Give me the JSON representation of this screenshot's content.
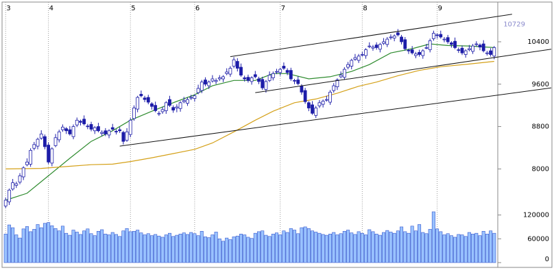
{
  "chart_data": {
    "type": "candlestick",
    "xlim": [
      -1,
      138
    ],
    "x_ticks": [
      {
        "value": 0,
        "label": "3"
      },
      {
        "value": 12,
        "label": "4"
      },
      {
        "value": 35,
        "label": "5"
      },
      {
        "value": 53,
        "label": "6"
      },
      {
        "value": 77,
        "label": "7"
      },
      {
        "value": 100,
        "label": "8"
      },
      {
        "value": 121,
        "label": "9"
      }
    ],
    "ylim": [
      7280,
      11150
    ],
    "yticks": [
      8000,
      8800,
      9600,
      10400
    ],
    "price_label": 10729,
    "up_color": "#ffffff",
    "down_color": "#1c1ca8",
    "open": [
      7300,
      7380,
      7620,
      7690,
      7750,
      7850,
      8080,
      8090,
      8390,
      8430,
      8580,
      8610,
      8450,
      8110,
      8440,
      8550,
      8740,
      8760,
      8740,
      8610,
      8830,
      8900,
      8940,
      8810,
      8840,
      8720,
      8800,
      8670,
      8720,
      8640,
      8780,
      8710,
      8740,
      8690,
      8540,
      8650,
      8950,
      9130,
      9410,
      9340,
      9350,
      9230,
      9200,
      9050,
      9080,
      9100,
      9310,
      9160,
      9150,
      9140,
      9270,
      9240,
      9340,
      9330,
      9440,
      9480,
      9680,
      9570,
      9660,
      9650,
      9700,
      9700,
      9800,
      9790,
      9940,
      10030,
      9920,
      9720,
      9730,
      9650,
      9780,
      9700,
      9690,
      9500,
      9670,
      9720,
      9830,
      9820,
      9940,
      9860,
      9860,
      9670,
      9680,
      9560,
      9480,
      9250,
      9210,
      9010,
      9190,
      9220,
      9300,
      9260,
      9480,
      9550,
      9740,
      9730,
      9920,
      9940,
      10070,
      10050,
      10160,
      10140,
      10310,
      10280,
      10340,
      10260,
      10370,
      10350,
      10480,
      10470,
      10570,
      10490,
      10440,
      10240,
      10250,
      10140,
      10200,
      10140,
      10290,
      10250,
      10460,
      10530,
      10540,
      10440,
      10480,
      10380,
      10410,
      10250,
      10280,
      10160,
      10250,
      10220,
      10350,
      10340,
      10360,
      10190,
      10230,
      10130
    ],
    "high": [
      7460,
      7630,
      7810,
      7760,
      7920,
      8050,
      8200,
      8390,
      8510,
      8590,
      8730,
      8650,
      8500,
      8410,
      8660,
      8740,
      8840,
      8790,
      8810,
      8840,
      8970,
      8930,
      9010,
      8850,
      8890,
      8810,
      8870,
      8730,
      8770,
      8750,
      8850,
      8750,
      8790,
      8720,
      8770,
      8960,
      9200,
      9380,
      9480,
      9380,
      9400,
      9260,
      9270,
      9090,
      9170,
      9280,
      9380,
      9200,
      9220,
      9280,
      9360,
      9350,
      9400,
      9410,
      9590,
      9680,
      9730,
      9670,
      9770,
      9710,
      9770,
      9770,
      9900,
      9940,
      10110,
      10090,
      9990,
      9760,
      9780,
      9750,
      9850,
      9740,
      9740,
      9680,
      9840,
      9840,
      9890,
      9910,
      10010,
      9900,
      9910,
      9700,
      9750,
      9600,
      9530,
      9280,
      9280,
      9190,
      9300,
      9310,
      9380,
      9490,
      9620,
      9710,
      9840,
      9920,
      10020,
      10080,
      10170,
      10170,
      10210,
      10280,
      10390,
      10340,
      10390,
      10380,
      10470,
      10490,
      10540,
      10540,
      10640,
      10530,
      10490,
      10270,
      10320,
      10210,
      10250,
      10260,
      10360,
      10460,
      10610,
      10560,
      10610,
      10490,
      10530,
      10410,
      10480,
      10290,
      10330,
      10260,
      10340,
      10360,
      10410,
      10370,
      10430,
      10230,
      10280,
      10320
    ],
    "low": [
      7260,
      7320,
      7590,
      7640,
      7710,
      7790,
      8050,
      8040,
      8350,
      8370,
      8550,
      8370,
      8090,
      8050,
      8410,
      8500,
      8700,
      8660,
      8630,
      8560,
      8790,
      8820,
      8820,
      8750,
      8710,
      8660,
      8690,
      8620,
      8620,
      8580,
      8720,
      8650,
      8680,
      8460,
      8510,
      8600,
      8910,
      9070,
      9350,
      9260,
      9220,
      9120,
      9070,
      9000,
      9040,
      9040,
      9170,
      9060,
      9070,
      9080,
      9240,
      9190,
      9300,
      9270,
      9410,
      9430,
      9560,
      9510,
      9630,
      9600,
      9660,
      9640,
      9770,
      9740,
      9900,
      9840,
      9740,
      9650,
      9630,
      9590,
      9710,
      9600,
      9490,
      9440,
      9640,
      9670,
      9790,
      9760,
      9870,
      9770,
      9660,
      9600,
      9580,
      9400,
      9230,
      9090,
      9020,
      8960,
      9150,
      9160,
      9270,
      9210,
      9440,
      9490,
      9710,
      9680,
      9880,
      9880,
      10040,
      10000,
      10120,
      10080,
      10280,
      10230,
      10250,
      10200,
      10340,
      10300,
      10440,
      10410,
      10500,
      10350,
      10230,
      10170,
      10160,
      10090,
      10120,
      10080,
      10260,
      10200,
      10420,
      10460,
      10460,
      10390,
      10360,
      10290,
      10260,
      10190,
      10150,
      10100,
      10220,
      10170,
      10310,
      10240,
      10200,
      10140,
      10120,
      10070
    ],
    "close": [
      7410,
      7600,
      7740,
      7720,
      7870,
      8020,
      8130,
      8350,
      8460,
      8560,
      8660,
      8420,
      8130,
      8380,
      8590,
      8700,
      8790,
      8720,
      8660,
      8800,
      8920,
      8880,
      8850,
      8800,
      8750,
      8780,
      8720,
      8690,
      8660,
      8720,
      8750,
      8700,
      8720,
      8520,
      8700,
      8920,
      9150,
      9350,
      9380,
      9310,
      9260,
      9180,
      9100,
      9050,
      9120,
      9250,
      9200,
      9110,
      9170,
      9250,
      9290,
      9310,
      9350,
      9380,
      9520,
      9640,
      9600,
      9640,
      9700,
      9670,
      9720,
      9740,
      9830,
      9900,
      10060,
      9900,
      9770,
      9700,
      9670,
      9720,
      9740,
      9650,
      9530,
      9650,
      9770,
      9800,
      9840,
      9880,
      9900,
      9820,
      9700,
      9660,
      9610,
      9450,
      9270,
      9150,
      9050,
      9150,
      9250,
      9280,
      9310,
      9450,
      9570,
      9680,
      9770,
      9880,
      9970,
      10050,
      10100,
      10130,
      10160,
      10250,
      10320,
      10300,
      10290,
      10350,
      10400,
      10450,
      10490,
      10510,
      10530,
      10400,
      10270,
      10230,
      10190,
      10170,
      10160,
      10230,
      10290,
      10420,
      10560,
      10520,
      10490,
      10450,
      10400,
      10350,
      10290,
      10240,
      10190,
      10230,
      10270,
      10320,
      10360,
      10300,
      10230,
      10190,
      10160,
      10290
    ],
    "moving_averages": [
      {
        "color": "#2e8b2e",
        "x": [
          0,
          6,
          12,
          18,
          24,
          30,
          35,
          41,
          47,
          53,
          58,
          64,
          70,
          75,
          79,
          85,
          91,
          97,
          102,
          108,
          114,
          119,
          124,
          130,
          137
        ],
        "values": [
          7410,
          7540,
          7870,
          8200,
          8520,
          8720,
          8920,
          9090,
          9250,
          9400,
          9570,
          9670,
          9670,
          9800,
          9800,
          9700,
          9740,
          9840,
          9970,
          10190,
          10270,
          10360,
          10330,
          10320,
          10290
        ]
      },
      {
        "color": "#d4a017",
        "x": [
          0,
          10,
          18,
          24,
          30,
          35,
          41,
          47,
          53,
          58,
          64,
          70,
          75,
          81,
          87,
          93,
          99,
          104,
          110,
          116,
          122,
          130,
          137
        ],
        "values": [
          8000,
          8010,
          8050,
          8080,
          8090,
          8140,
          8210,
          8290,
          8370,
          8490,
          8700,
          8920,
          9090,
          9250,
          9320,
          9430,
          9560,
          9640,
          9760,
          9860,
          9930,
          9980,
          10030
        ]
      }
    ],
    "trend_lines": [
      {
        "x": [
          32,
          153
        ],
        "values": [
          8430,
          9530
        ]
      },
      {
        "x": [
          63,
          142
        ],
        "values": [
          10120,
          10920
        ]
      },
      {
        "x": [
          70,
          153
        ],
        "values": [
          9440,
          10260
        ]
      }
    ],
    "volume": {
      "color": "#99c2ff",
      "ylim": [
        0,
        140000
      ],
      "yticks": [
        0,
        60000,
        120000
      ],
      "values": [
        72000,
        95000,
        88000,
        70000,
        62000,
        85000,
        91000,
        78000,
        84000,
        96000,
        88000,
        99000,
        101000,
        93000,
        86000,
        80000,
        92000,
        74000,
        69000,
        82000,
        77000,
        71000,
        80000,
        85000,
        73000,
        68000,
        79000,
        83000,
        72000,
        70000,
        76000,
        71000,
        66000,
        80000,
        86000,
        78000,
        79000,
        82000,
        75000,
        70000,
        73000,
        68000,
        71000,
        67000,
        64000,
        70000,
        74000,
        66000,
        69000,
        72000,
        75000,
        71000,
        76000,
        73000,
        68000,
        79000,
        65000,
        63000,
        70000,
        77000,
        60000,
        54000,
        62000,
        58000,
        65000,
        67000,
        72000,
        70000,
        64000,
        61000,
        74000,
        78000,
        80000,
        69000,
        66000,
        72000,
        75000,
        70000,
        80000,
        76000,
        86000,
        82000,
        73000,
        88000,
        90000,
        86000,
        80000,
        77000,
        74000,
        71000,
        69000,
        72000,
        76000,
        70000,
        73000,
        79000,
        82000,
        75000,
        71000,
        78000,
        74000,
        70000,
        83000,
        78000,
        72000,
        69000,
        76000,
        81000,
        77000,
        74000,
        80000,
        90000,
        78000,
        74000,
        92000,
        80000,
        96000,
        76000,
        73000,
        84000,
        128000,
        85000,
        78000,
        70000,
        73000,
        68000,
        64000,
        71000,
        70000,
        66000,
        76000,
        72000,
        74000,
        68000,
        79000,
        72000,
        80000,
        74000
      ]
    }
  }
}
